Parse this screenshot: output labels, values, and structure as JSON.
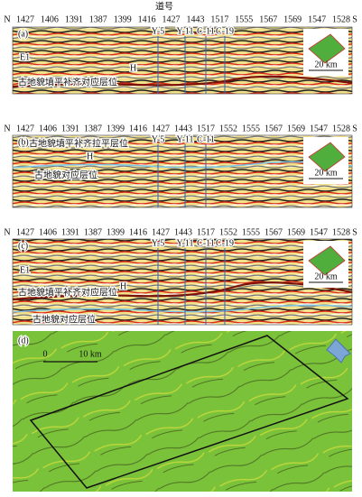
{
  "header": {
    "title": "道号"
  },
  "panels": [
    {
      "label": "(a)",
      "axis_start": "N",
      "axis_end": "S",
      "traces": [
        "1427",
        "1406",
        "1391",
        "1387",
        "1399",
        "1416",
        "1427",
        "1443",
        "1517",
        "1555",
        "1567",
        "1569",
        "1547",
        "1528"
      ],
      "wells": [
        "Y-5",
        "Y-11",
        "C-11",
        "C-19"
      ],
      "annotations": [
        "E1",
        "H",
        "古地貌填平补齐对应层位"
      ],
      "scale": "20 km"
    },
    {
      "label": "(b)",
      "axis_start": "N",
      "axis_end": "S",
      "traces": [
        "1427",
        "1406",
        "1391",
        "1387",
        "1399",
        "1416",
        "1427",
        "1443",
        "1517",
        "1552",
        "1555",
        "1567",
        "1569",
        "1547",
        "1528"
      ],
      "wells": [
        "Y-5",
        "Y-11",
        "C-11"
      ],
      "annotations": [
        "古地貌填平补齐拉平层位",
        "H",
        "古地貌对应层位"
      ],
      "scale": "20 km"
    },
    {
      "label": "(c)",
      "axis_start": "N",
      "axis_end": "S",
      "traces": [
        "1427",
        "1406",
        "1391",
        "1387",
        "1399",
        "1416",
        "1427",
        "1443",
        "1517",
        "1552",
        "1555",
        "1567",
        "1569",
        "1547",
        "1528"
      ],
      "wells": [
        "Y-5",
        "Y-11",
        "C-11",
        "C-19"
      ],
      "annotations": [
        "E1",
        "H",
        "古地貌填平补齐对应层位",
        "古地貌对应层位"
      ],
      "scale": "20 km"
    }
  ],
  "map": {
    "label": "(d)",
    "scale_start": "0",
    "scale_end": "10 km"
  }
}
